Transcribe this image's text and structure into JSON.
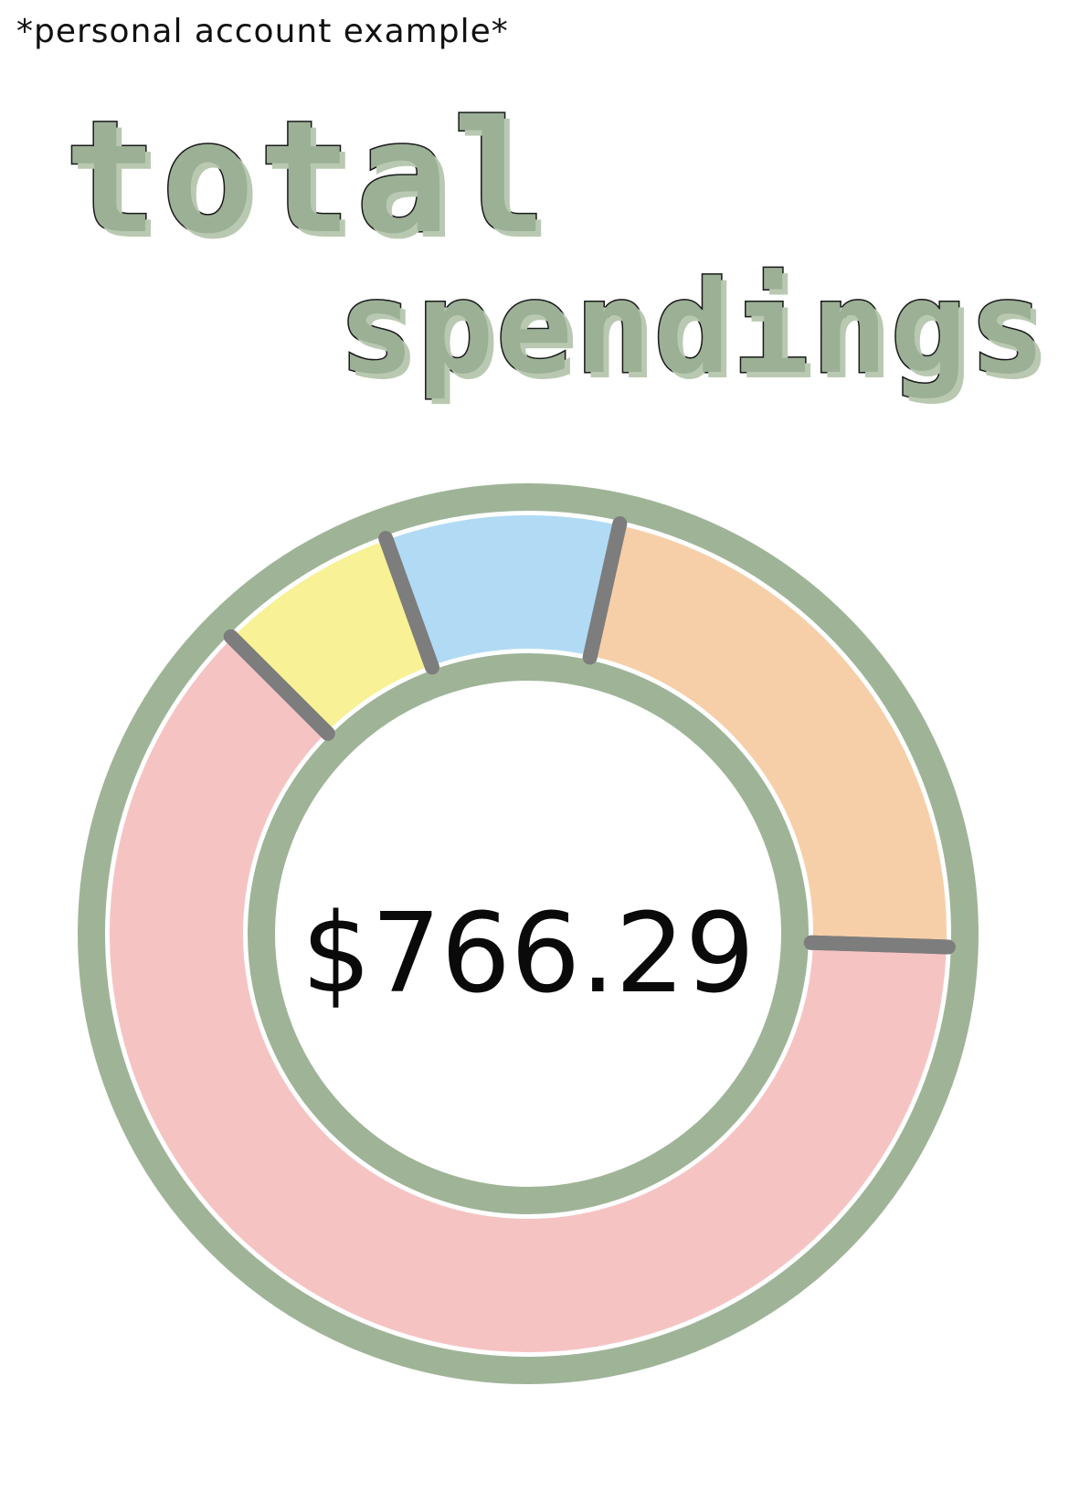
{
  "note": "*personal account example*",
  "title": {
    "line1": "total",
    "line2": "spendings"
  },
  "colors": {
    "ring": "#9fb497",
    "divider": "#7d7d7d",
    "title_fill": "#9cb096"
  },
  "chart_data": {
    "type": "pie",
    "style": "donut",
    "center_label": "$766.29",
    "legend": "none",
    "slices": [
      {
        "color": "#f7f08a",
        "share": 0.07
      },
      {
        "color": "#a9d6f3",
        "share": 0.09
      },
      {
        "color": "#f5caa0",
        "share": 0.22
      },
      {
        "color": "#f5bcbc",
        "share": 0.62
      }
    ]
  }
}
